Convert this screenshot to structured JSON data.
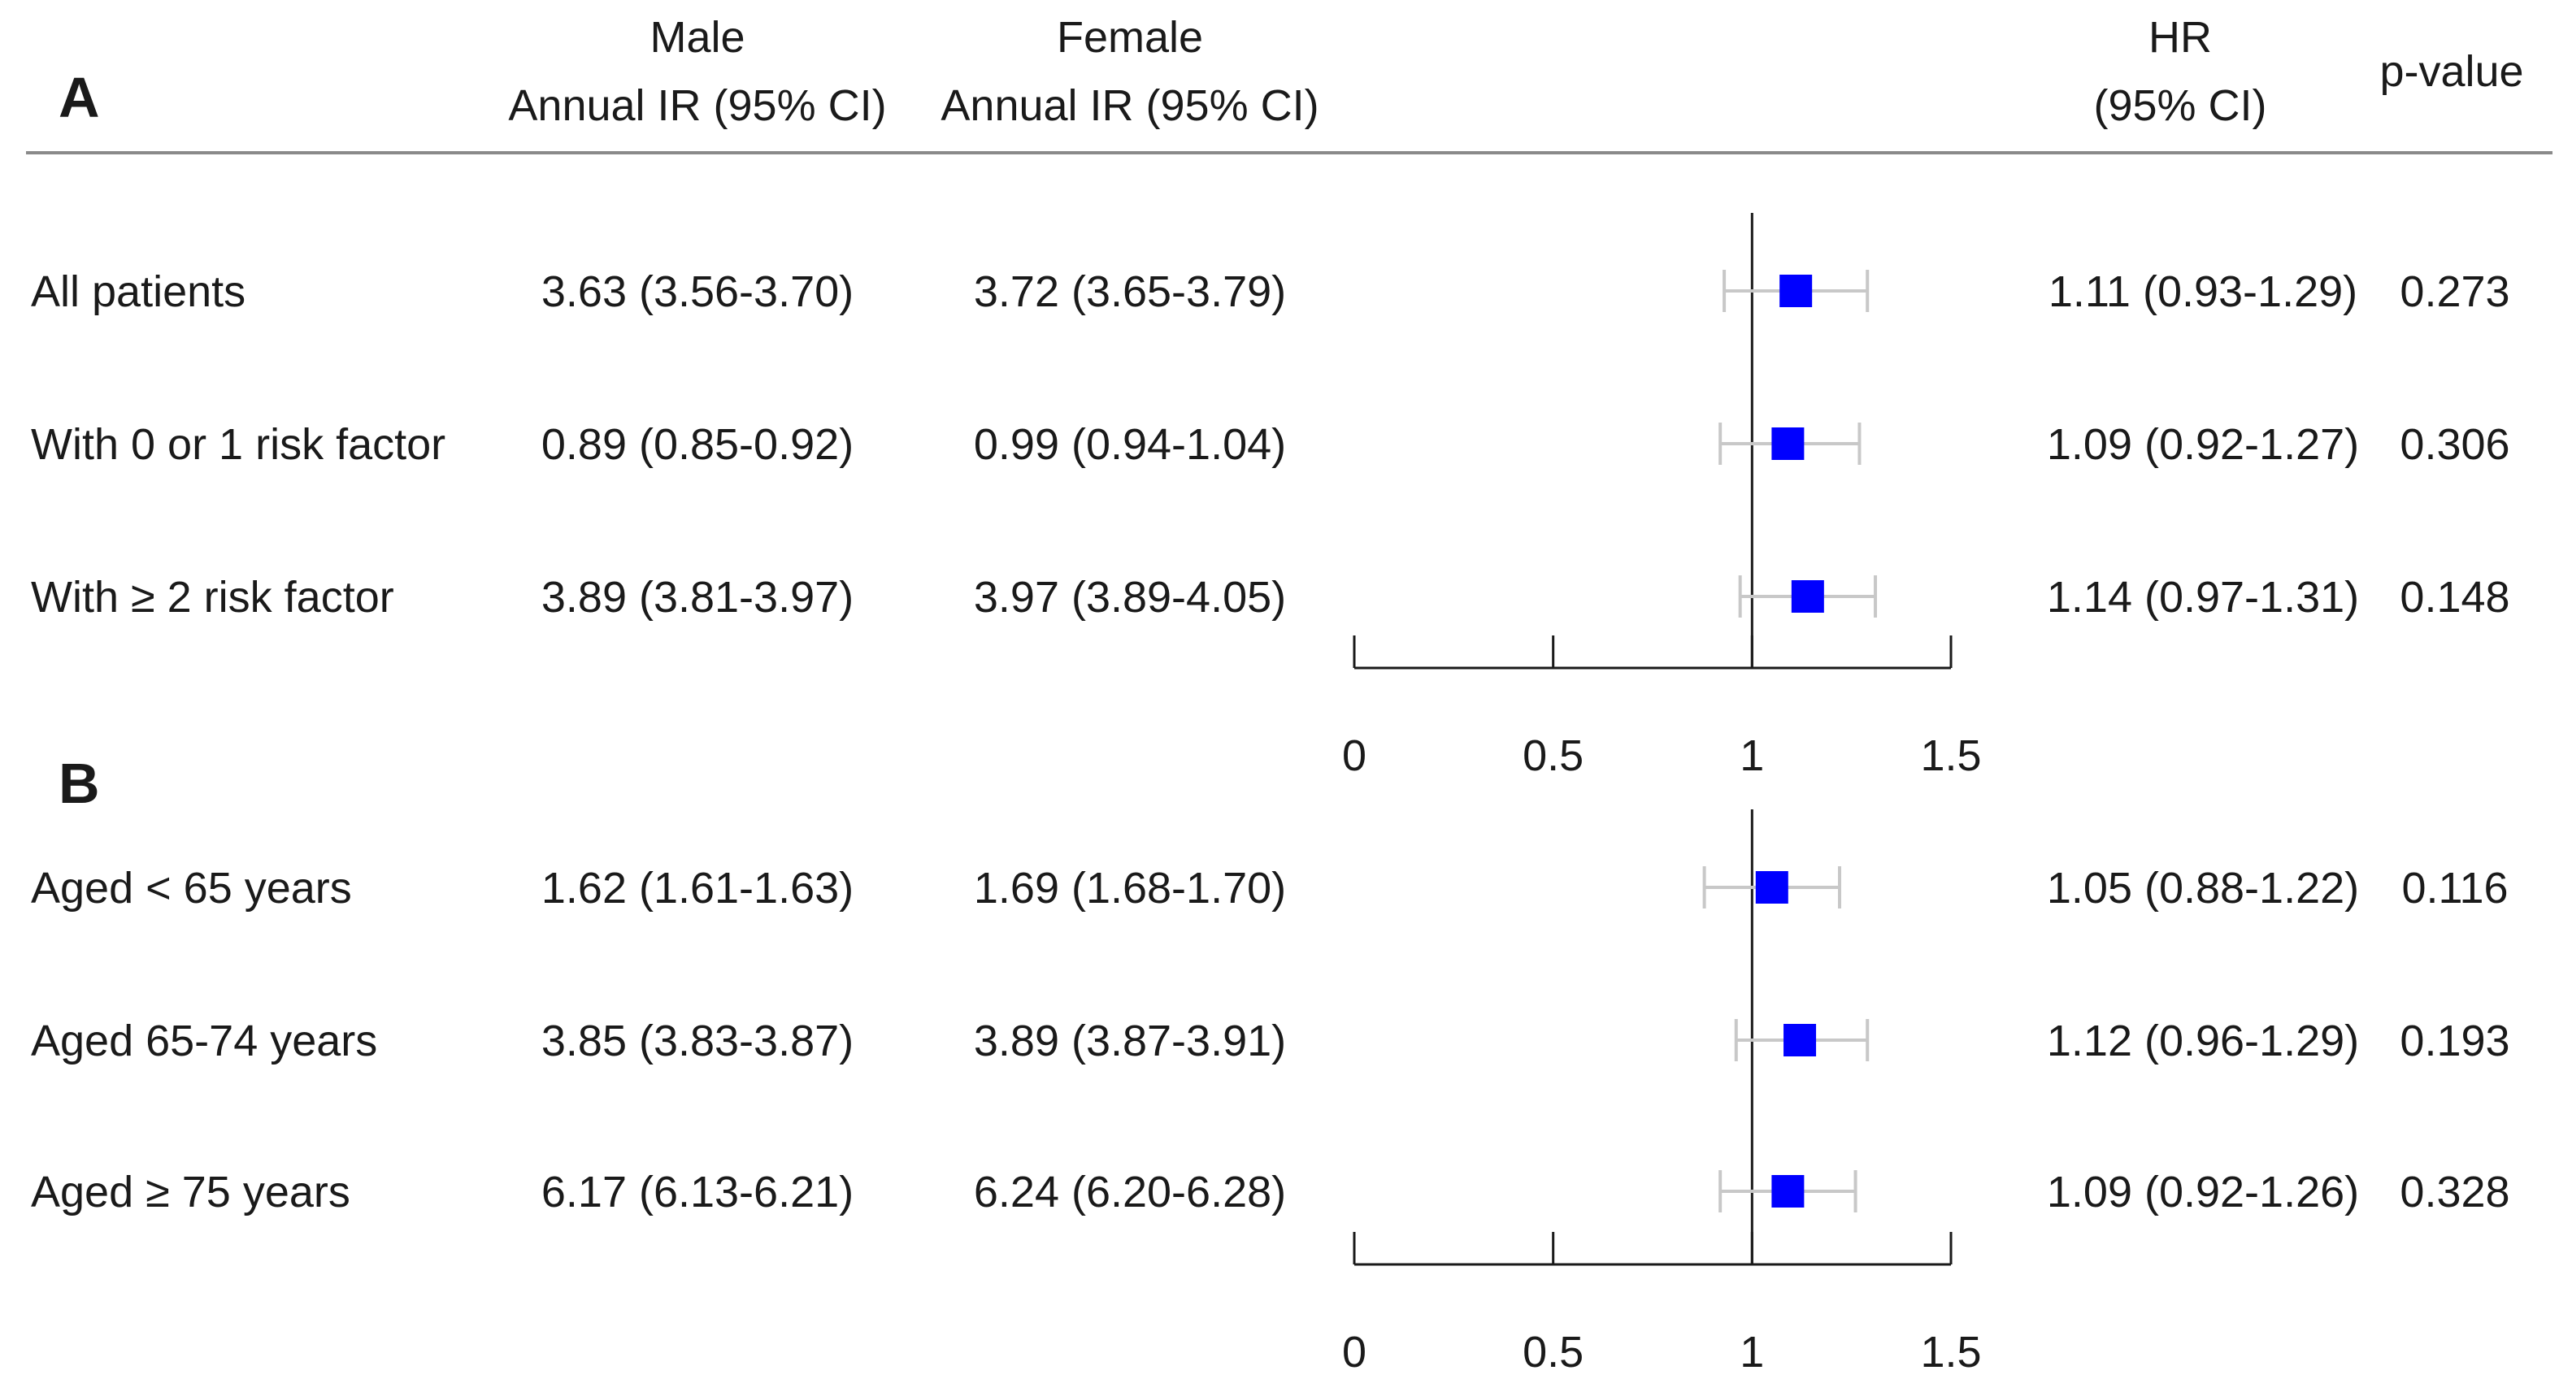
{
  "header": {
    "male_line1": "Male",
    "male_line2": "Annual IR (95% CI)",
    "female_line1": "Female",
    "female_line2": "Annual IR (95% CI)",
    "hr_line1": "HR",
    "hr_line2": "(95% CI)",
    "pvalue": "p-value"
  },
  "chart_data": [
    {
      "type": "forest",
      "panel_label": "A",
      "xlim": [
        0,
        1.5
      ],
      "ticks": [
        0,
        0.5,
        1,
        1.5
      ],
      "tick_labels": [
        "0",
        "0.5",
        "1",
        "1.5"
      ],
      "reference_line": 1,
      "rows": [
        {
          "label": "All patients",
          "male": "3.63 (3.56-3.70)",
          "female": "3.72 (3.65-3.79)",
          "hr": 1.11,
          "lo": 0.93,
          "hi": 1.29,
          "hr_text": "1.11 (0.93-1.29)",
          "p": "0.273"
        },
        {
          "label": "With 0 or 1 risk factor",
          "male": "0.89 (0.85-0.92)",
          "female": "0.99 (0.94-1.04)",
          "hr": 1.09,
          "lo": 0.92,
          "hi": 1.27,
          "hr_text": "1.09 (0.92-1.27)",
          "p": "0.306"
        },
        {
          "label": "With ≥ 2 risk factor",
          "male": "3.89 (3.81-3.97)",
          "female": "3.97 (3.89-4.05)",
          "hr": 1.14,
          "lo": 0.97,
          "hi": 1.31,
          "hr_text": "1.14 (0.97-1.31)",
          "p": "0.148"
        }
      ]
    },
    {
      "type": "forest",
      "panel_label": "B",
      "xlim": [
        0,
        1.5
      ],
      "ticks": [
        0,
        0.5,
        1,
        1.5
      ],
      "tick_labels": [
        "0",
        "0.5",
        "1",
        "1.5"
      ],
      "reference_line": 1,
      "rows": [
        {
          "label": "Aged < 65 years",
          "male": "1.62 (1.61-1.63)",
          "female": "1.69 (1.68-1.70)",
          "hr": 1.05,
          "lo": 0.88,
          "hi": 1.22,
          "hr_text": "1.05 (0.88-1.22)",
          "p": "0.116"
        },
        {
          "label": "Aged 65-74 years",
          "male": "3.85 (3.83-3.87)",
          "female": "3.89 (3.87-3.91)",
          "hr": 1.12,
          "lo": 0.96,
          "hi": 1.29,
          "hr_text": "1.12 (0.96-1.29)",
          "p": "0.193"
        },
        {
          "label": "Aged ≥ 75 years",
          "male": "6.17 (6.13-6.21)",
          "female": "6.24 (6.20-6.28)",
          "hr": 1.09,
          "lo": 0.92,
          "hi": 1.26,
          "hr_text": "1.09 (0.92-1.26)",
          "p": "0.328"
        }
      ]
    }
  ],
  "colors": {
    "marker": "#0000ff",
    "ci_line": "#c8c8c8",
    "axis": "#1a1a1a",
    "rule": "#8a8a8a"
  }
}
